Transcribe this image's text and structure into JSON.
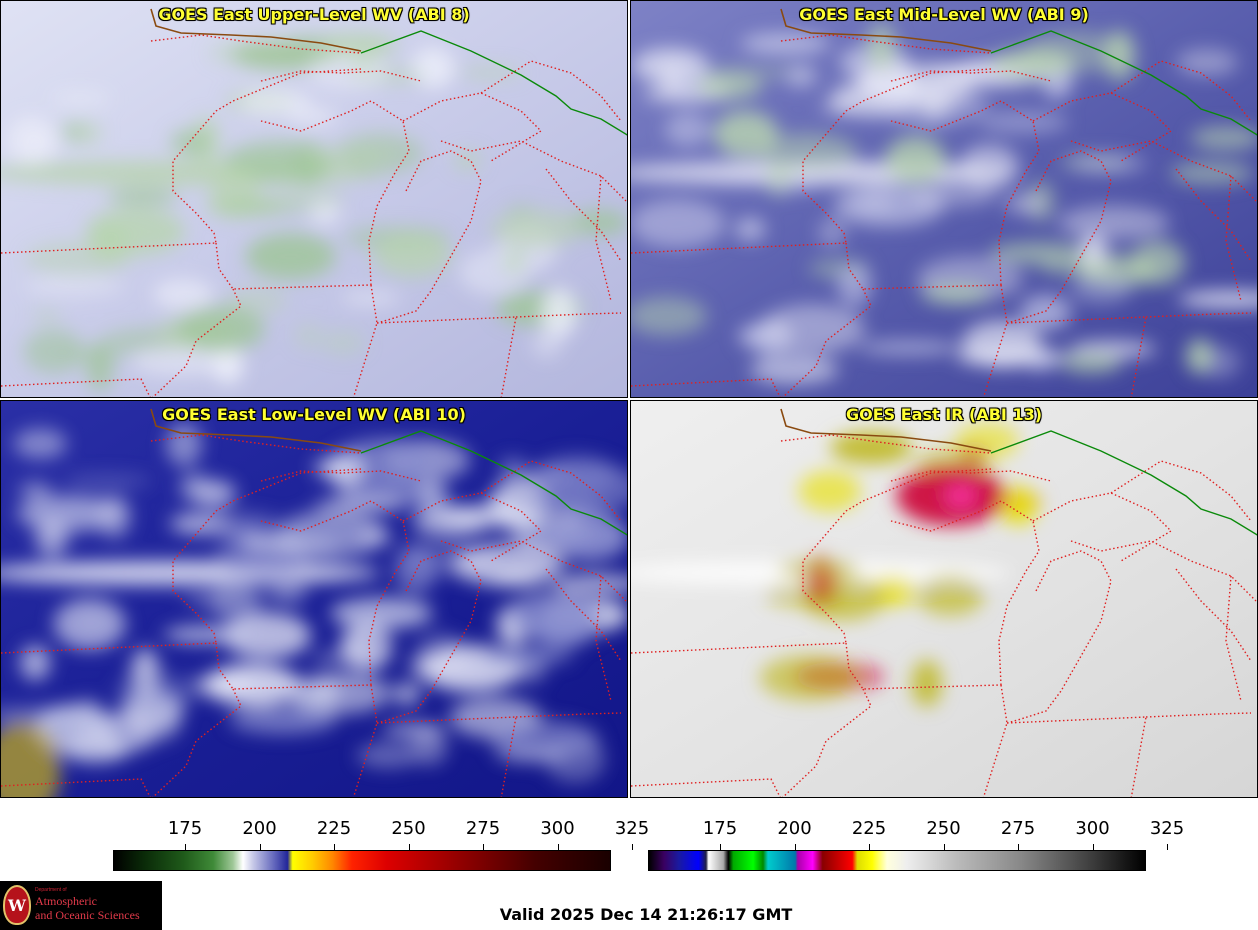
{
  "panels": [
    {
      "title": "GOES East Upper-Level WV (ABI 8)",
      "base": "#d9dcf0",
      "palette": "upper"
    },
    {
      "title": "GOES East Mid-Level WV (ABI 9)",
      "base": "#5a5fae",
      "palette": "mid"
    },
    {
      "title": "GOES East Low-Level WV (ABI 10)",
      "base": "#1a1f96",
      "palette": "low"
    },
    {
      "title": "GOES East IR (ABI 13)",
      "base": "#e6e6e6",
      "palette": "ir"
    }
  ],
  "colorbars": [
    {
      "name": "wv-colorbar",
      "ticks": [
        "175",
        "200",
        "225",
        "250",
        "275",
        "300",
        "325"
      ]
    },
    {
      "name": "ir-colorbar",
      "ticks": [
        "175",
        "200",
        "225",
        "250",
        "275",
        "300",
        "325"
      ]
    }
  ],
  "logo": {
    "dept": "Department of",
    "line1": "Atmospheric",
    "line2": "and Oceanic Sciences",
    "seal_letter": "W"
  },
  "valid_text": "Valid 2025 Dec 14 21:26:17 GMT",
  "colors": {
    "state_borders": "#e02020",
    "country_border": "#0a8a0a",
    "coast": "#8a4a10",
    "title": "#ffff33"
  }
}
